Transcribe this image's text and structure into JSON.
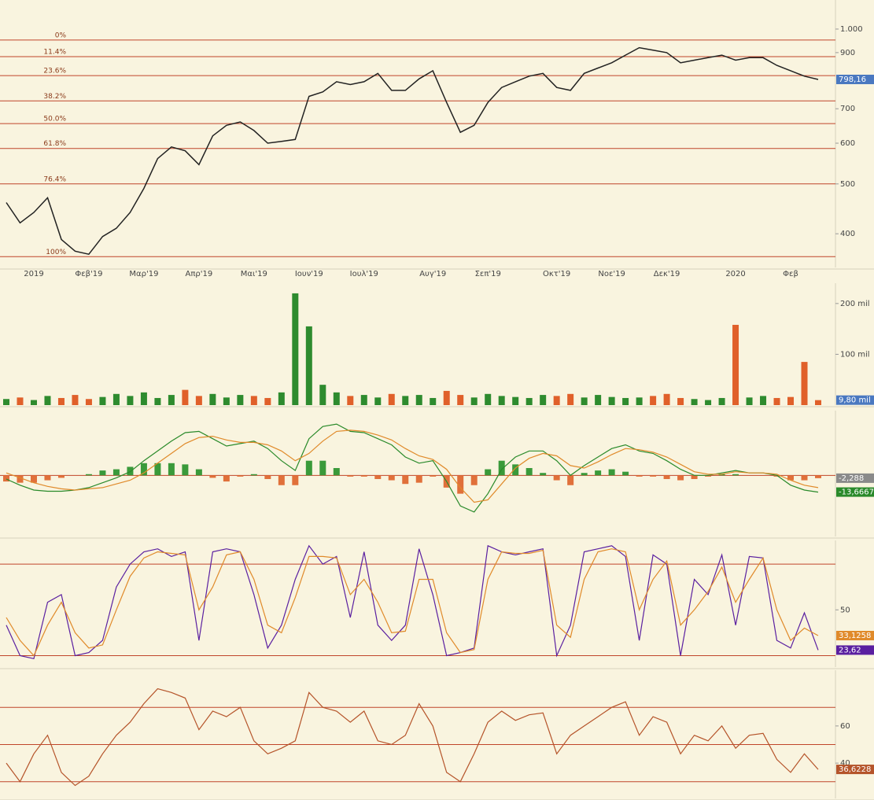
{
  "chart_data": [
    {
      "type": "line",
      "log_scale": true,
      "ylim": [
        344,
        1139
      ],
      "yticks": [
        400,
        500,
        600,
        700,
        900,
        {
          "value": 1000,
          "label": "1.000"
        }
      ],
      "categories": [
        null,
        null,
        "2019",
        null,
        null,
        null,
        "Φεβ'19",
        null,
        null,
        null,
        "Μαρ'19",
        null,
        null,
        null,
        "Απρ'19",
        null,
        null,
        null,
        "Μαι'19",
        null,
        null,
        null,
        "Ιουν'19",
        null,
        null,
        null,
        "Ιουλ'19",
        null,
        null,
        null,
        null,
        "Αυγ'19",
        null,
        null,
        null,
        "Σεπ'19",
        null,
        null,
        null,
        null,
        "Οκτ'19",
        null,
        null,
        null,
        "Νοε'19",
        null,
        null,
        null,
        "Δεκ'19",
        null,
        null,
        null,
        null,
        "2020",
        null,
        null,
        null,
        "Φεβ",
        null,
        null
      ],
      "levels": [
        {
          "value": 952,
          "label": "0%"
        },
        {
          "value": 884,
          "label": "11.4%"
        },
        {
          "value": 812,
          "label": "23.6%"
        },
        {
          "value": 725,
          "label": "38.2%"
        },
        {
          "value": 655,
          "label": "50.0%"
        },
        {
          "value": 586,
          "label": "61.8%"
        },
        {
          "value": 500,
          "label": "76.4%"
        },
        {
          "value": 361,
          "label": "100%"
        }
      ],
      "level_color": "#c0452a",
      "series": [
        {
          "type": "line",
          "color": "#222222",
          "values": [
            460,
            420,
            440,
            470,
            390,
            370,
            365,
            395,
            410,
            440,
            490,
            560,
            590,
            580,
            545,
            620,
            650,
            660,
            635,
            600,
            605,
            610,
            740,
            755,
            790,
            780,
            790,
            820,
            760,
            760,
            800,
            830,
            720,
            630,
            650,
            720,
            770,
            790,
            810,
            820,
            770,
            760,
            820,
            840,
            860,
            890,
            920,
            910,
            900,
            860,
            870,
            880,
            890,
            870,
            880,
            880,
            850,
            830,
            810,
            798.16
          ],
          "value_labels": [
            null,
            null,
            null,
            null,
            null,
            null,
            null,
            null,
            null,
            null,
            null,
            null,
            null,
            null,
            null,
            null,
            null,
            null,
            null,
            null,
            null,
            null,
            null,
            null,
            null,
            null,
            null,
            null,
            null,
            null,
            null,
            null,
            null,
            null,
            null,
            null,
            null,
            null,
            null,
            null,
            null,
            null,
            null,
            null,
            null,
            null,
            null,
            null,
            null,
            null,
            null,
            null,
            null,
            null,
            null,
            null,
            null,
            null,
            null,
            "798,16"
          ],
          "label_color": "#4a78c0"
        }
      ]
    },
    {
      "type": "bar",
      "ylim": [
        0,
        240
      ],
      "yticks": [
        {
          "value": 100,
          "label": "100 mil"
        },
        {
          "value": 200,
          "label": "200 mil"
        }
      ],
      "series": [
        {
          "type": "bar",
          "up_color": "#2e8b2e",
          "down_color": "#e0602a",
          "values": [
            12,
            15,
            10,
            18,
            14,
            20,
            12,
            16,
            22,
            18,
            25,
            14,
            20,
            30,
            18,
            22,
            15,
            20,
            18,
            14,
            25,
            220,
            155,
            40,
            25,
            18,
            20,
            15,
            22,
            18,
            20,
            14,
            28,
            20,
            15,
            22,
            18,
            16,
            14,
            20,
            18,
            22,
            15,
            20,
            16,
            14,
            15,
            18,
            22,
            14,
            12,
            10,
            14,
            158,
            15,
            18,
            14,
            16,
            85,
            9.8
          ],
          "value_labels": [
            null,
            null,
            null,
            null,
            null,
            null,
            null,
            null,
            null,
            null,
            null,
            null,
            null,
            null,
            null,
            null,
            null,
            null,
            null,
            null,
            null,
            null,
            null,
            null,
            null,
            null,
            null,
            null,
            null,
            null,
            null,
            null,
            null,
            null,
            null,
            null,
            null,
            null,
            null,
            null,
            null,
            null,
            null,
            null,
            null,
            null,
            null,
            null,
            null,
            null,
            null,
            null,
            null,
            null,
            null,
            null,
            null,
            null,
            null,
            "9,80 mil"
          ],
          "label_color": "#4a78c0"
        }
      ]
    },
    {
      "type": "line",
      "ylim": [
        -50,
        53
      ],
      "yticks": [],
      "levels": [
        0
      ],
      "level_color": "#c0452a",
      "series": [
        {
          "type": "bar",
          "up_color": "#3a9a3a",
          "down_color": "#e0703a",
          "values": [
            -5,
            -6,
            -6,
            -4,
            -2,
            0,
            1,
            4,
            5,
            7,
            10,
            10,
            10,
            9,
            5,
            -2,
            -5,
            -1,
            1,
            -3,
            -8,
            -8,
            12,
            12,
            6,
            -1,
            -1,
            -3,
            -4,
            -7,
            -6,
            -1,
            -10,
            -15,
            -8,
            5,
            12,
            9,
            6,
            2,
            -4,
            -8,
            2,
            4,
            5,
            3,
            -1,
            -1,
            -3,
            -4,
            -3,
            -1,
            1,
            1,
            0,
            0,
            -1,
            -4,
            -4,
            -2.288
          ],
          "value_labels": [
            null,
            null,
            null,
            null,
            null,
            null,
            null,
            null,
            null,
            null,
            null,
            null,
            null,
            null,
            null,
            null,
            null,
            null,
            null,
            null,
            null,
            null,
            null,
            null,
            null,
            null,
            null,
            null,
            null,
            null,
            null,
            null,
            null,
            null,
            null,
            null,
            null,
            null,
            null,
            null,
            null,
            null,
            null,
            null,
            null,
            null,
            null,
            null,
            null,
            null,
            null,
            null,
            null,
            null,
            null,
            null,
            null,
            null,
            null,
            "-2,288"
          ],
          "label_color": "#8a8a8a"
        },
        {
          "type": "line",
          "color": "#2a8a2a",
          "values": [
            -3,
            -8,
            -12,
            -13,
            -13,
            -12,
            -10,
            -6,
            -2,
            3,
            12,
            20,
            28,
            35,
            36,
            30,
            24,
            26,
            28,
            22,
            12,
            4,
            30,
            40,
            42,
            36,
            35,
            30,
            25,
            15,
            10,
            12,
            -5,
            -25,
            -30,
            -15,
            5,
            15,
            20,
            20,
            12,
            0,
            8,
            15,
            22,
            25,
            20,
            18,
            12,
            5,
            0,
            0,
            2,
            4,
            2,
            2,
            0,
            -8,
            -12,
            -13.6667
          ],
          "value_labels": [
            null,
            null,
            null,
            null,
            null,
            null,
            null,
            null,
            null,
            null,
            null,
            null,
            null,
            null,
            null,
            null,
            null,
            null,
            null,
            null,
            null,
            null,
            null,
            null,
            null,
            null,
            null,
            null,
            null,
            null,
            null,
            null,
            null,
            null,
            null,
            null,
            null,
            null,
            null,
            null,
            null,
            null,
            null,
            null,
            null,
            null,
            null,
            null,
            null,
            null,
            null,
            null,
            null,
            null,
            null,
            null,
            null,
            null,
            null,
            "-13,6667"
          ],
          "label_color": "#2a8a2a"
        },
        {
          "type": "line",
          "color": "#e08a2a",
          "values": [
            2,
            -2,
            -6,
            -9,
            -11,
            -12,
            -11,
            -10,
            -7,
            -4,
            2,
            10,
            18,
            26,
            31,
            32,
            29,
            27,
            27,
            25,
            20,
            12,
            18,
            28,
            36,
            37,
            36,
            33,
            29,
            22,
            16,
            13,
            5,
            -10,
            -22,
            -20,
            -7,
            6,
            14,
            18,
            16,
            8,
            6,
            11,
            17,
            22,
            21,
            19,
            15,
            9,
            3,
            1,
            1,
            3,
            2,
            2,
            1,
            -4,
            -8,
            -10
          ]
        }
      ]
    },
    {
      "type": "line",
      "ylim": [
        12.5,
        95.5
      ],
      "yticks": [
        50
      ],
      "levels": [
        80,
        20
      ],
      "level_color": "#c0452a",
      "series": [
        {
          "type": "line",
          "color": "#5a1fa0",
          "values": [
            40,
            20,
            18,
            55,
            60,
            20,
            22,
            30,
            65,
            80,
            88,
            90,
            85,
            88,
            30,
            88,
            90,
            88,
            60,
            25,
            40,
            70,
            92,
            80,
            85,
            45,
            88,
            40,
            30,
            40,
            90,
            60,
            20,
            22,
            25,
            92,
            88,
            86,
            88,
            90,
            20,
            40,
            88,
            90,
            92,
            85,
            30,
            86,
            80,
            20,
            70,
            60,
            86,
            40,
            85,
            84,
            30,
            25,
            48,
            23.62
          ],
          "value_labels": [
            null,
            null,
            null,
            null,
            null,
            null,
            null,
            null,
            null,
            null,
            null,
            null,
            null,
            null,
            null,
            null,
            null,
            null,
            null,
            null,
            null,
            null,
            null,
            null,
            null,
            null,
            null,
            null,
            null,
            null,
            null,
            null,
            null,
            null,
            null,
            null,
            null,
            null,
            null,
            null,
            null,
            null,
            null,
            null,
            null,
            null,
            null,
            null,
            null,
            null,
            null,
            null,
            null,
            null,
            null,
            null,
            null,
            null,
            null,
            "23,62"
          ],
          "label_color": "#5a1fa0"
        },
        {
          "type": "line",
          "color": "#e08a2a",
          "values": [
            45,
            30,
            20,
            40,
            55,
            35,
            25,
            27,
            50,
            72,
            84,
            88,
            87,
            86,
            50,
            65,
            86,
            88,
            70,
            40,
            35,
            58,
            85,
            85,
            84,
            60,
            70,
            55,
            35,
            36,
            70,
            70,
            35,
            22,
            24,
            70,
            88,
            87,
            87,
            89,
            40,
            32,
            70,
            88,
            90,
            88,
            50,
            70,
            82,
            40,
            50,
            62,
            78,
            55,
            70,
            84,
            50,
            30,
            38,
            33.1258
          ],
          "value_labels": [
            null,
            null,
            null,
            null,
            null,
            null,
            null,
            null,
            null,
            null,
            null,
            null,
            null,
            null,
            null,
            null,
            null,
            null,
            null,
            null,
            null,
            null,
            null,
            null,
            null,
            null,
            null,
            null,
            null,
            null,
            null,
            null,
            null,
            null,
            null,
            null,
            null,
            null,
            null,
            null,
            null,
            null,
            null,
            null,
            null,
            null,
            null,
            null,
            null,
            null,
            null,
            null,
            null,
            null,
            null,
            null,
            null,
            null,
            null,
            "33,1258"
          ],
          "label_color": "#e08a2a"
        }
      ]
    },
    {
      "type": "line",
      "ylim": [
        21,
        90
      ],
      "yticks": [
        40,
        60
      ],
      "levels": [
        70,
        50,
        30
      ],
      "level_color": "#c0452a",
      "series": [
        {
          "type": "line",
          "color": "#b5542a",
          "values": [
            40,
            30,
            45,
            55,
            35,
            28,
            33,
            45,
            55,
            62,
            72,
            80,
            78,
            75,
            58,
            68,
            65,
            70,
            52,
            45,
            48,
            52,
            78,
            70,
            68,
            62,
            68,
            52,
            50,
            55,
            72,
            60,
            35,
            30,
            45,
            62,
            68,
            63,
            66,
            67,
            45,
            55,
            60,
            65,
            70,
            73,
            55,
            65,
            62,
            45,
            55,
            52,
            60,
            48,
            55,
            56,
            42,
            35,
            45,
            36.6228
          ],
          "value_labels": [
            null,
            null,
            null,
            null,
            null,
            null,
            null,
            null,
            null,
            null,
            null,
            null,
            null,
            null,
            null,
            null,
            null,
            null,
            null,
            null,
            null,
            null,
            null,
            null,
            null,
            null,
            null,
            null,
            null,
            null,
            null,
            null,
            null,
            null,
            null,
            null,
            null,
            null,
            null,
            null,
            null,
            null,
            null,
            null,
            null,
            null,
            null,
            null,
            null,
            null,
            null,
            null,
            null,
            null,
            null,
            null,
            null,
            null,
            null,
            "36,6228"
          ],
          "label_color": "#b5542a"
        }
      ]
    }
  ]
}
